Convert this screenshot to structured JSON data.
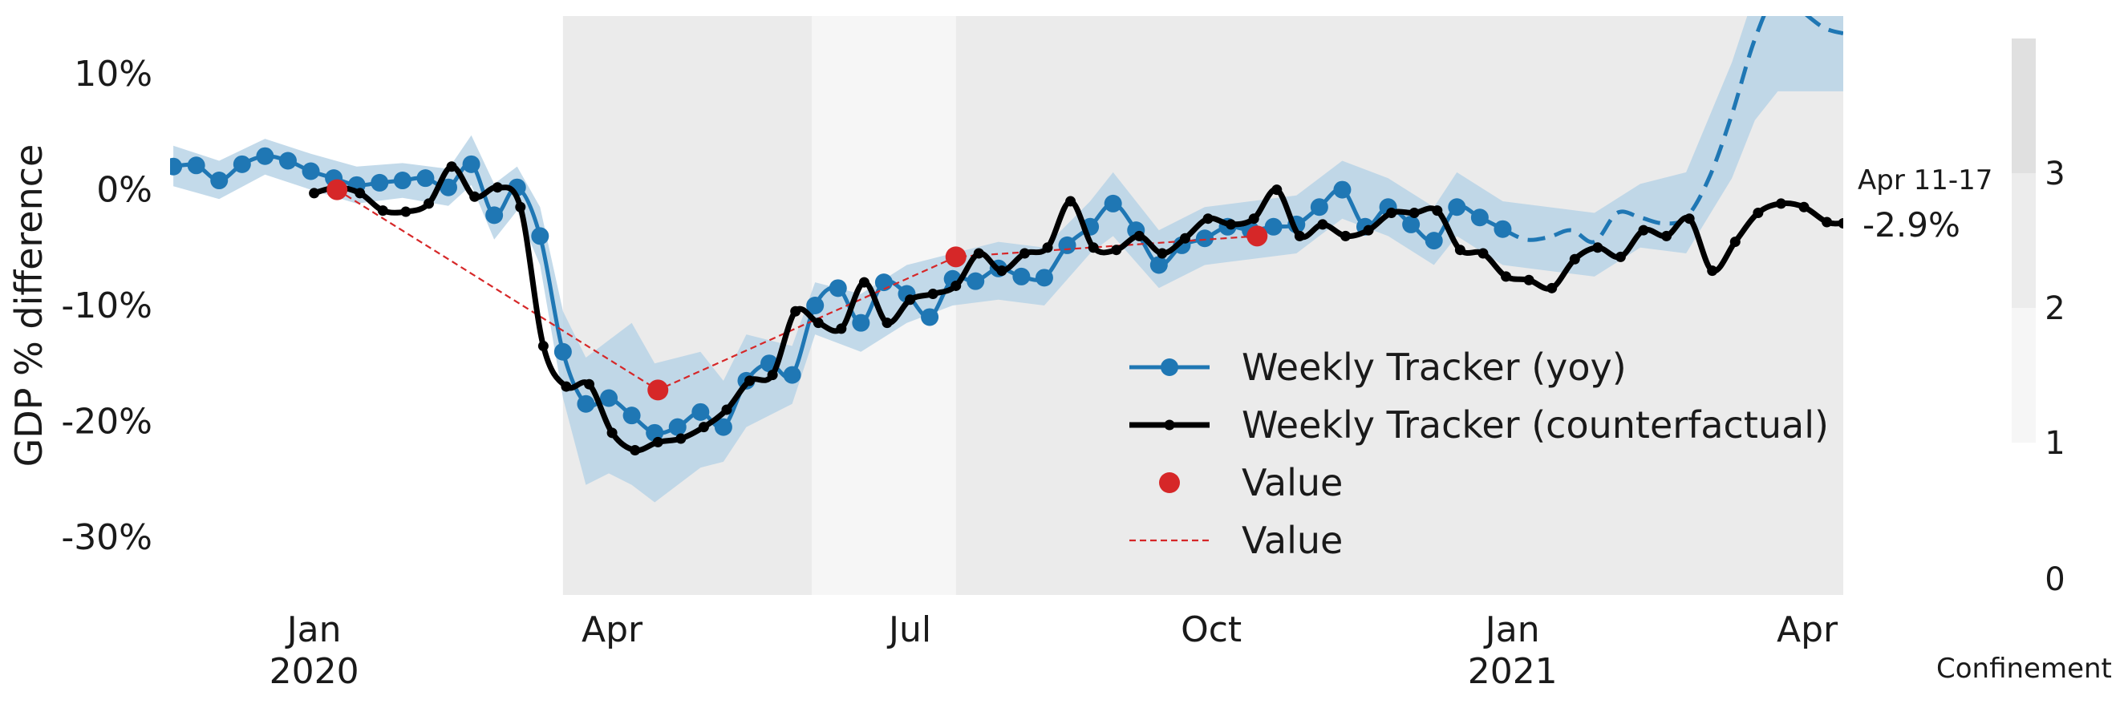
{
  "chart_data": {
    "type": "line",
    "title": "",
    "ylabel": "GDP % difference",
    "xlabel": "",
    "ylim": [
      -35,
      15
    ],
    "y_ticks": [
      10,
      0,
      -10,
      -20,
      -30
    ],
    "y_tick_labels": [
      "10%",
      "0%",
      "-10%",
      "-20%",
      "-30%"
    ],
    "x_ticks": [
      {
        "date": "2020-01-01",
        "label": "Jan",
        "year": "2020"
      },
      {
        "date": "2020-04-01",
        "label": "Apr",
        "year": ""
      },
      {
        "date": "2020-07-01",
        "label": "Jul",
        "year": ""
      },
      {
        "date": "2020-10-01",
        "label": "Oct",
        "year": ""
      },
      {
        "date": "2021-01-01",
        "label": "Jan",
        "year": "2021"
      },
      {
        "date": "2021-04-01",
        "label": "Apr",
        "year": ""
      }
    ],
    "xlim": [
      "2019-11-18",
      "2021-04-12"
    ],
    "grid": false,
    "legend_position": "lower-right",
    "confinement_periods": [
      {
        "start": "2020-03-17",
        "end": "2020-06-01",
        "level": 3
      },
      {
        "start": "2020-06-01",
        "end": "2020-07-15",
        "level": 1
      },
      {
        "start": "2020-07-15",
        "end": "2021-04-12",
        "level": 3
      }
    ],
    "colorbar": {
      "title": "Confinement",
      "ticks": [
        "0",
        "1",
        "2",
        "3"
      ],
      "colors": [
        "#f6f6f6",
        "#ececec",
        "#e0e0e0"
      ]
    },
    "annotation": {
      "label": "Apr 11-17",
      "value": "-2.9%"
    },
    "series": [
      {
        "name": "Weekly Tracker (yoy)",
        "color": "#1f77b4",
        "style": "solid-markers",
        "points": [
          [
            "2019-11-19",
            2.0
          ],
          [
            "2019-11-26",
            2.1
          ],
          [
            "2019-12-03",
            0.8
          ],
          [
            "2019-12-10",
            2.2
          ],
          [
            "2019-12-17",
            2.9
          ],
          [
            "2019-12-24",
            2.5
          ],
          [
            "2019-12-31",
            1.6
          ],
          [
            "2020-01-07",
            1.0
          ],
          [
            "2020-01-14",
            0.4
          ],
          [
            "2020-01-21",
            0.6
          ],
          [
            "2020-01-28",
            0.8
          ],
          [
            "2020-02-04",
            1.0
          ],
          [
            "2020-02-11",
            0.2
          ],
          [
            "2020-02-18",
            2.2
          ],
          [
            "2020-02-25",
            -2.2
          ],
          [
            "2020-03-03",
            0.2
          ],
          [
            "2020-03-10",
            -4.0
          ],
          [
            "2020-03-17",
            -14.0
          ],
          [
            "2020-03-24",
            -18.5
          ],
          [
            "2020-03-31",
            -18.0
          ],
          [
            "2020-04-07",
            -19.5
          ],
          [
            "2020-04-14",
            -21.0
          ],
          [
            "2020-04-21",
            -20.5
          ],
          [
            "2020-04-28",
            -19.2
          ],
          [
            "2020-05-05",
            -20.5
          ],
          [
            "2020-05-12",
            -16.5
          ],
          [
            "2020-05-19",
            -15.0
          ],
          [
            "2020-05-26",
            -16.0
          ],
          [
            "2020-06-02",
            -10.0
          ],
          [
            "2020-06-09",
            -8.5
          ],
          [
            "2020-06-16",
            -11.5
          ],
          [
            "2020-06-23",
            -8.0
          ],
          [
            "2020-06-30",
            -9.0
          ],
          [
            "2020-07-07",
            -11.0
          ],
          [
            "2020-07-14",
            -7.7
          ],
          [
            "2020-07-21",
            -7.9
          ],
          [
            "2020-07-28",
            -6.8
          ],
          [
            "2020-08-04",
            -7.5
          ],
          [
            "2020-08-11",
            -7.6
          ],
          [
            "2020-08-18",
            -4.8
          ],
          [
            "2020-08-25",
            -3.2
          ],
          [
            "2020-09-01",
            -1.2
          ],
          [
            "2020-09-08",
            -3.5
          ],
          [
            "2020-09-15",
            -6.5
          ],
          [
            "2020-09-22",
            -4.8
          ],
          [
            "2020-09-29",
            -4.2
          ],
          [
            "2020-10-06",
            -3.2
          ],
          [
            "2020-10-13",
            -3.5
          ],
          [
            "2020-10-20",
            -3.2
          ],
          [
            "2020-10-27",
            -3.0
          ],
          [
            "2020-11-03",
            -1.5
          ],
          [
            "2020-11-10",
            0.0
          ],
          [
            "2020-11-17",
            -3.2
          ],
          [
            "2020-11-24",
            -1.5
          ],
          [
            "2020-12-01",
            -3.0
          ],
          [
            "2020-12-08",
            -4.4
          ],
          [
            "2020-12-15",
            -1.5
          ],
          [
            "2020-12-22",
            -2.4
          ],
          [
            "2020-12-29",
            -3.4
          ]
        ]
      },
      {
        "name": "Weekly Tracker (yoy)",
        "color": "#1f77b4",
        "style": "dashed",
        "in_legend": false,
        "points": [
          [
            "2020-12-29",
            -3.4
          ],
          [
            "2021-01-05",
            -4.3
          ],
          [
            "2021-01-12",
            -4.1
          ],
          [
            "2021-01-19",
            -3.5
          ],
          [
            "2021-01-26",
            -4.5
          ],
          [
            "2021-02-02",
            -2.0
          ],
          [
            "2021-02-09",
            -2.4
          ],
          [
            "2021-02-16",
            -2.9
          ],
          [
            "2021-02-23",
            -2.4
          ],
          [
            "2021-03-02",
            1.0
          ],
          [
            "2021-03-09",
            6.5
          ],
          [
            "2021-03-16",
            13.0
          ],
          [
            "2021-03-23",
            17.0
          ],
          [
            "2021-03-30",
            15.5
          ],
          [
            "2021-04-06",
            14.0
          ],
          [
            "2021-04-12",
            13.5
          ]
        ]
      },
      {
        "name": "Weekly Tracker (counterfactual)",
        "color": "#000000",
        "style": "solid-small-markers",
        "points": [
          [
            "2020-01-01",
            -0.3
          ],
          [
            "2020-01-08",
            0.2
          ],
          [
            "2020-01-15",
            -0.3
          ],
          [
            "2020-01-22",
            -1.8
          ],
          [
            "2020-01-29",
            -1.9
          ],
          [
            "2020-02-05",
            -1.2
          ],
          [
            "2020-02-12",
            2.0
          ],
          [
            "2020-02-19",
            -0.6
          ],
          [
            "2020-02-26",
            0.2
          ],
          [
            "2020-03-04",
            -1.5
          ],
          [
            "2020-03-11",
            -13.5
          ],
          [
            "2020-03-18",
            -17.0
          ],
          [
            "2020-03-25",
            -16.8
          ],
          [
            "2020-04-01",
            -21.0
          ],
          [
            "2020-04-08",
            -22.5
          ],
          [
            "2020-04-15",
            -21.8
          ],
          [
            "2020-04-22",
            -21.5
          ],
          [
            "2020-04-29",
            -20.5
          ],
          [
            "2020-05-06",
            -19.0
          ],
          [
            "2020-05-13",
            -16.5
          ],
          [
            "2020-05-20",
            -16.0
          ],
          [
            "2020-05-27",
            -10.5
          ],
          [
            "2020-06-03",
            -11.5
          ],
          [
            "2020-06-10",
            -12.0
          ],
          [
            "2020-06-17",
            -8.0
          ],
          [
            "2020-06-24",
            -11.5
          ],
          [
            "2020-07-01",
            -9.5
          ],
          [
            "2020-07-08",
            -9.0
          ],
          [
            "2020-07-15",
            -8.3
          ],
          [
            "2020-07-22",
            -5.5
          ],
          [
            "2020-07-29",
            -7.0
          ],
          [
            "2020-08-05",
            -5.5
          ],
          [
            "2020-08-12",
            -5.0
          ],
          [
            "2020-08-19",
            -1.0
          ],
          [
            "2020-08-26",
            -5.0
          ],
          [
            "2020-09-02",
            -5.2
          ],
          [
            "2020-09-09",
            -4.0
          ],
          [
            "2020-09-16",
            -5.5
          ],
          [
            "2020-09-23",
            -4.2
          ],
          [
            "2020-09-30",
            -2.5
          ],
          [
            "2020-10-07",
            -3.0
          ],
          [
            "2020-10-14",
            -2.5
          ],
          [
            "2020-10-21",
            0.0
          ],
          [
            "2020-10-28",
            -4.0
          ],
          [
            "2020-11-04",
            -3.0
          ],
          [
            "2020-11-11",
            -4.0
          ],
          [
            "2020-11-18",
            -3.5
          ],
          [
            "2020-11-25",
            -2.0
          ],
          [
            "2020-12-02",
            -2.0
          ],
          [
            "2020-12-09",
            -1.8
          ],
          [
            "2020-12-16",
            -5.2
          ],
          [
            "2020-12-23",
            -5.5
          ],
          [
            "2020-12-30",
            -7.5
          ],
          [
            "2021-01-06",
            -7.8
          ],
          [
            "2021-01-13",
            -8.5
          ],
          [
            "2021-01-20",
            -6.0
          ],
          [
            "2021-01-27",
            -5.0
          ],
          [
            "2021-02-03",
            -5.8
          ],
          [
            "2021-02-10",
            -3.5
          ],
          [
            "2021-02-17",
            -4.0
          ],
          [
            "2021-02-24",
            -2.5
          ],
          [
            "2021-03-03",
            -7.0
          ],
          [
            "2021-03-10",
            -4.5
          ],
          [
            "2021-03-17",
            -2.0
          ],
          [
            "2021-03-24",
            -1.2
          ],
          [
            "2021-03-31",
            -1.5
          ],
          [
            "2021-04-07",
            -2.8
          ],
          [
            "2021-04-12",
            -2.9
          ]
        ]
      },
      {
        "name": "Value",
        "color": "#d62728",
        "style": "markers",
        "points": [
          [
            "2020-01-08",
            0.0
          ],
          [
            "2020-04-15",
            -17.3
          ],
          [
            "2020-07-15",
            -5.8
          ],
          [
            "2020-10-15",
            -4.0
          ]
        ]
      },
      {
        "name": "Value",
        "color": "#d62728",
        "style": "dashed-thin",
        "points": [
          [
            "2020-01-08",
            0.0
          ],
          [
            "2020-04-15",
            -17.3
          ],
          [
            "2020-07-15",
            -5.8
          ],
          [
            "2020-10-15",
            -4.0
          ]
        ]
      }
    ],
    "band": {
      "color": "#b8d3e6",
      "points": [
        [
          "2019-11-19",
          3.8,
          0.3
        ],
        [
          "2019-12-03",
          2.5,
          -0.8
        ],
        [
          "2019-12-17",
          4.4,
          1.3
        ],
        [
          "2019-12-31",
          3.1,
          0.0
        ],
        [
          "2020-01-14",
          2.0,
          -1.2
        ],
        [
          "2020-01-28",
          2.3,
          -0.7
        ],
        [
          "2020-02-11",
          1.8,
          -1.4
        ],
        [
          "2020-02-18",
          4.7,
          0.4
        ],
        [
          "2020-02-25",
          0.5,
          -4.3
        ],
        [
          "2020-03-03",
          2.0,
          -1.8
        ],
        [
          "2020-03-10",
          -1.5,
          -6.5
        ],
        [
          "2020-03-17",
          -10.5,
          -18.0
        ],
        [
          "2020-03-24",
          -14.5,
          -25.5
        ],
        [
          "2020-03-31",
          -13.0,
          -24.5
        ],
        [
          "2020-04-07",
          -11.5,
          -25.5
        ],
        [
          "2020-04-14",
          -15.0,
          -27.0
        ],
        [
          "2020-04-28",
          -14.0,
          -24.0
        ],
        [
          "2020-05-05",
          -16.5,
          -23.5
        ],
        [
          "2020-05-12",
          -12.5,
          -20.5
        ],
        [
          "2020-05-26",
          -13.5,
          -18.5
        ],
        [
          "2020-06-02",
          -8.0,
          -12.5
        ],
        [
          "2020-06-16",
          -9.0,
          -14.0
        ],
        [
          "2020-06-30",
          -6.5,
          -11.5
        ],
        [
          "2020-07-14",
          -5.5,
          -10.0
        ],
        [
          "2020-07-28",
          -4.5,
          -9.5
        ],
        [
          "2020-08-11",
          -5.0,
          -10.0
        ],
        [
          "2020-08-25",
          -1.0,
          -5.5
        ],
        [
          "2020-09-01",
          1.5,
          -4.0
        ],
        [
          "2020-09-15",
          -3.5,
          -8.5
        ],
        [
          "2020-09-29",
          -1.5,
          -6.5
        ],
        [
          "2020-10-13",
          -1.0,
          -6.0
        ],
        [
          "2020-10-27",
          -0.5,
          -5.5
        ],
        [
          "2020-11-10",
          2.5,
          -2.5
        ],
        [
          "2020-11-24",
          1.0,
          -4.0
        ],
        [
          "2020-12-08",
          -1.5,
          -6.5
        ],
        [
          "2020-12-15",
          1.5,
          -4.0
        ],
        [
          "2020-12-29",
          -1.0,
          -6.5
        ],
        [
          "2021-01-12",
          -1.5,
          -7.0
        ],
        [
          "2021-01-26",
          -2.0,
          -7.5
        ],
        [
          "2021-02-09",
          0.5,
          -5.0
        ],
        [
          "2021-02-23",
          1.5,
          -5.5
        ],
        [
          "2021-03-09",
          11.0,
          1.0
        ],
        [
          "2021-03-16",
          17.0,
          6.0
        ],
        [
          "2021-03-23",
          17.0,
          8.5
        ],
        [
          "2021-04-12",
          17.0,
          8.5
        ]
      ]
    }
  }
}
